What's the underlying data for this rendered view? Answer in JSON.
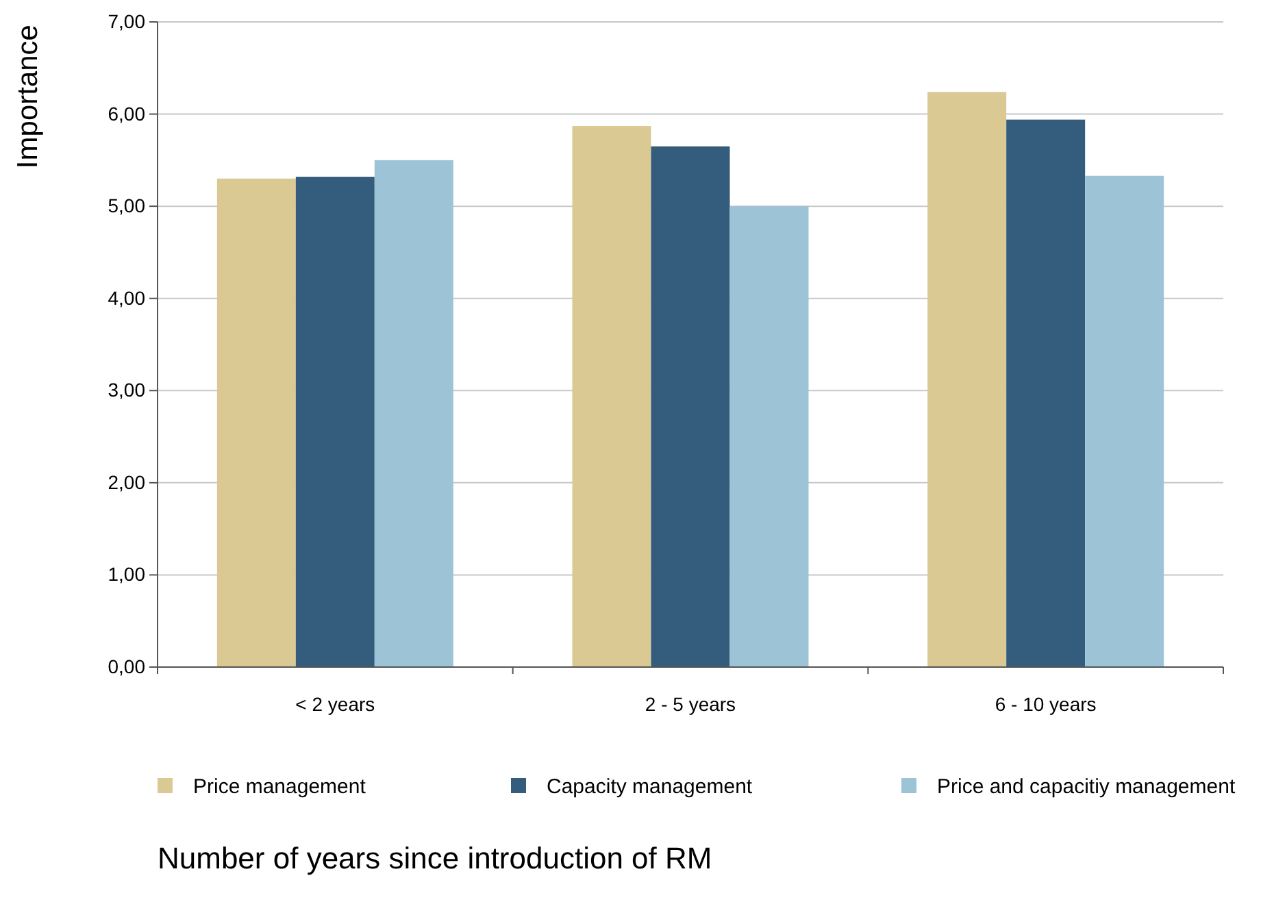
{
  "chart_data": {
    "type": "bar",
    "xlabel": "Number of years since introduction of RM",
    "ylabel": "Importance",
    "categories": [
      "< 2 years",
      "2 - 5 years",
      "6 - 10 years"
    ],
    "series": [
      {
        "name": "Price management",
        "color": "#dbc993",
        "values": [
          5.3,
          5.87,
          6.24
        ]
      },
      {
        "name": "Capacity management",
        "color": "#345c7c",
        "values": [
          5.32,
          5.65,
          5.94
        ]
      },
      {
        "name": "Price and capacitiy management",
        "color": "#9dc3d7",
        "values": [
          5.5,
          5.0,
          5.33
        ]
      }
    ],
    "ylim": [
      0,
      7
    ],
    "yticks": [
      {
        "value": 0,
        "label": "0,00"
      },
      {
        "value": 1,
        "label": "1,00"
      },
      {
        "value": 2,
        "label": "2,00"
      },
      {
        "value": 3,
        "label": "3,00"
      },
      {
        "value": 4,
        "label": "4,00"
      },
      {
        "value": 5,
        "label": "5,00"
      },
      {
        "value": 6,
        "label": "6,00"
      },
      {
        "value": 7,
        "label": "7,00"
      }
    ],
    "grid": "y",
    "legend": "bottom"
  }
}
